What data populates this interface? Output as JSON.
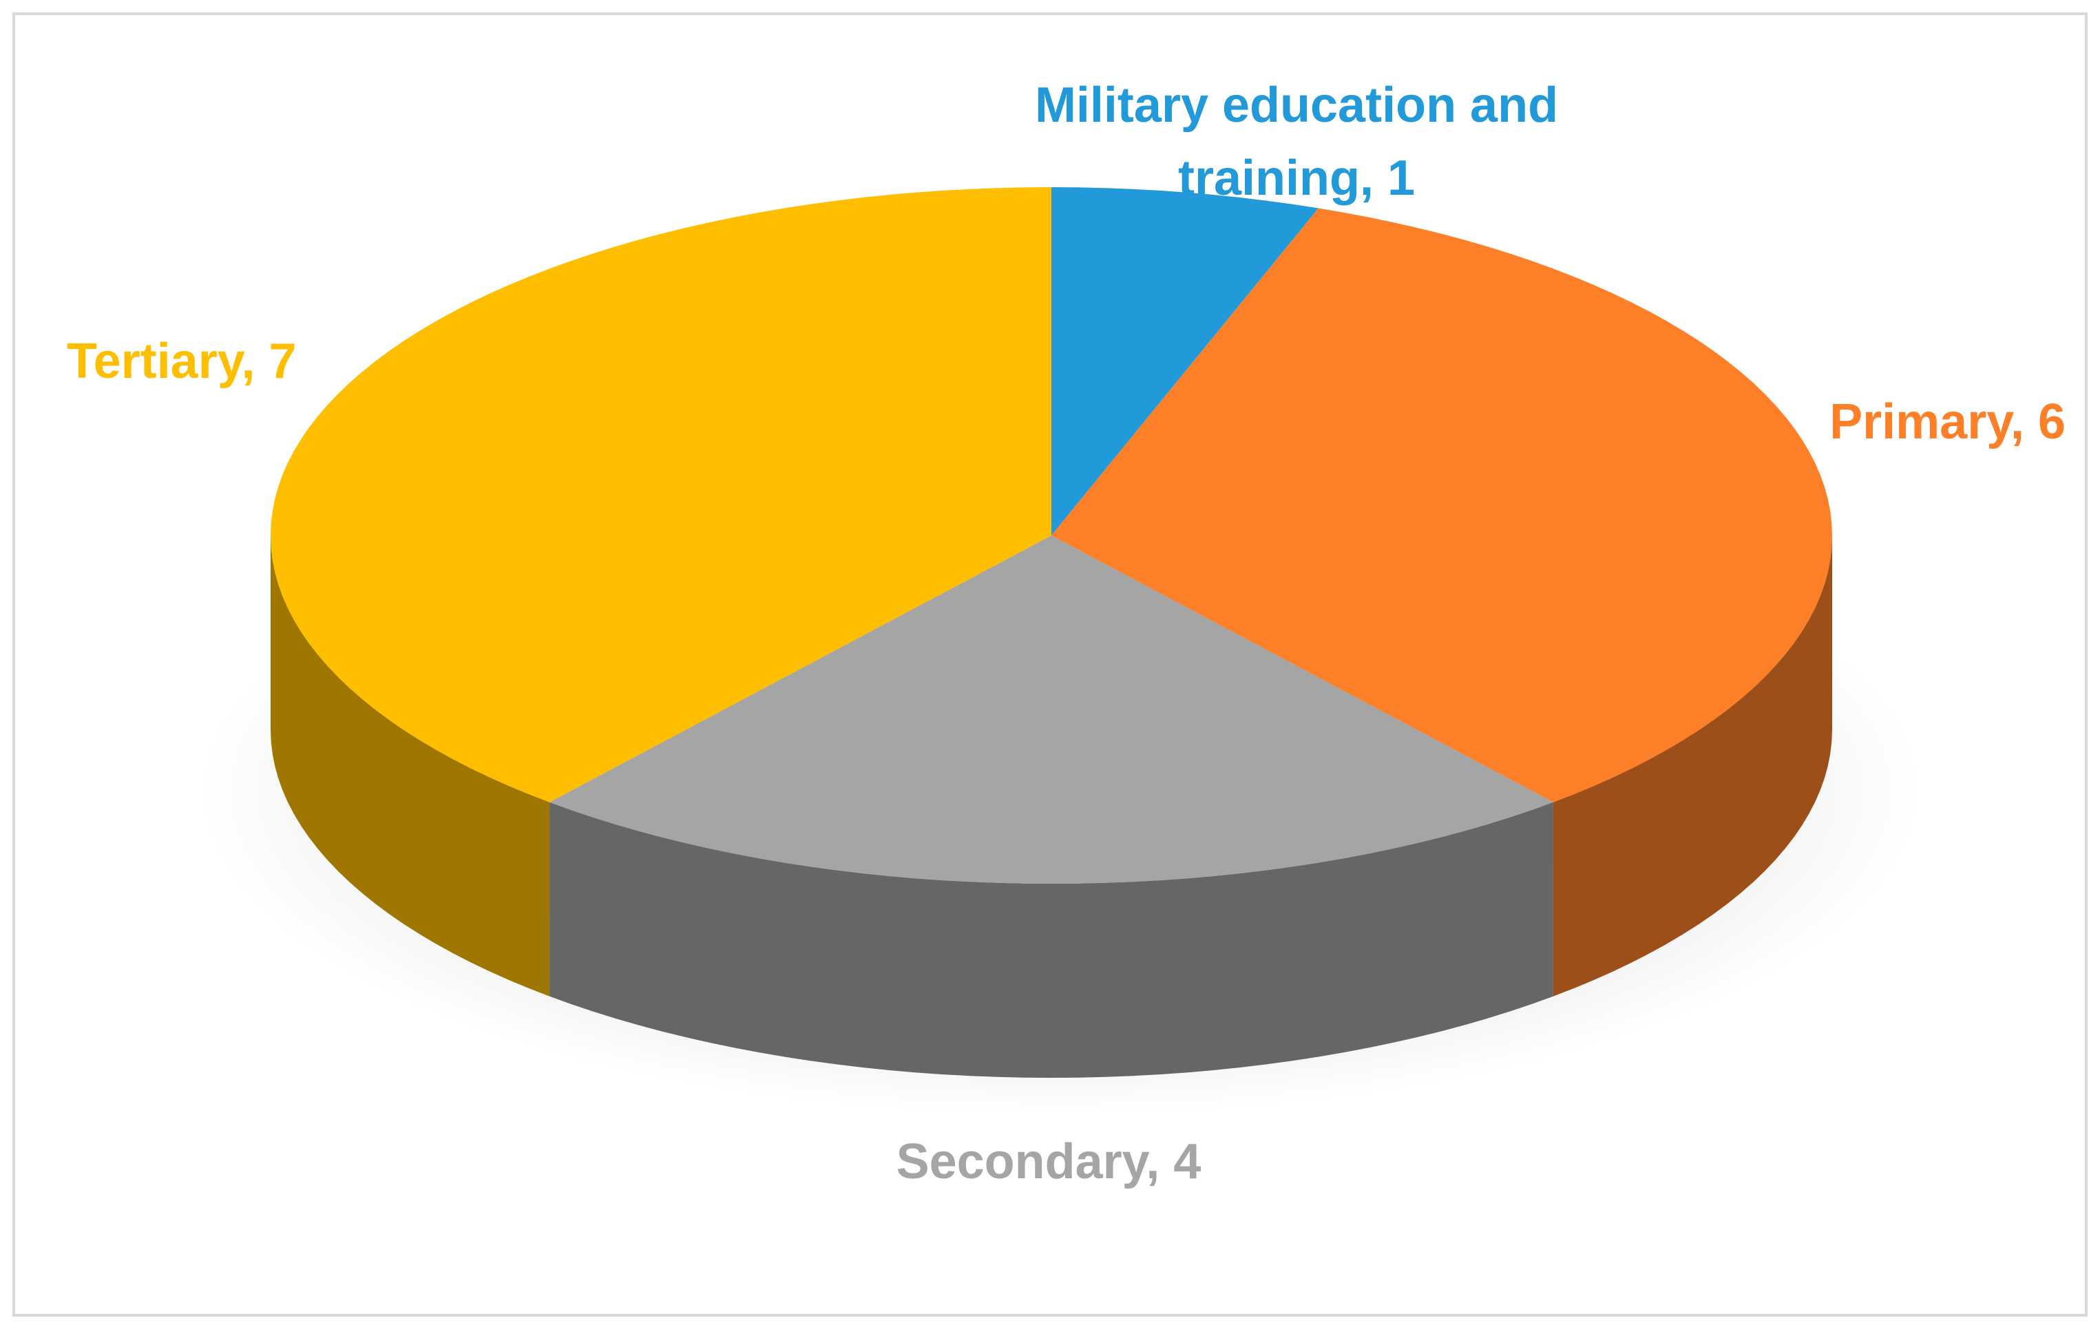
{
  "chart_data": {
    "type": "pie3d",
    "values": [
      1,
      6,
      4,
      7
    ],
    "value_labels": [
      "Military education and training, 1",
      "Primary, 6",
      "Secondary, 4",
      "Tertiary, 7"
    ],
    "colors": [
      "#2299d8",
      "#fd7f28",
      "#a5a5a5",
      "#ffbf00"
    ]
  }
}
